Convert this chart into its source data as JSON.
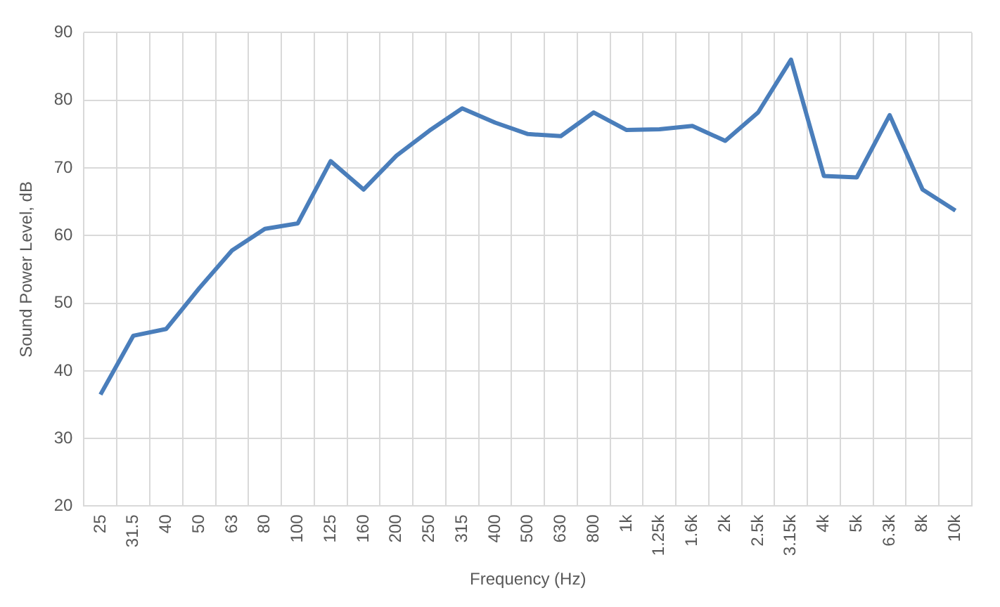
{
  "chart_data": {
    "type": "line",
    "xlabel": "Frequency (Hz)",
    "ylabel": "Sound Power Level, dB",
    "categories": [
      "25",
      "31.5",
      "40",
      "50",
      "63",
      "80",
      "100",
      "125",
      "160",
      "200",
      "250",
      "315",
      "400",
      "500",
      "630",
      "800",
      "1k",
      "1.25k",
      "1.6k",
      "2k",
      "2.5k",
      "3.15k",
      "4k",
      "5k",
      "6.3k",
      "8k",
      "10k"
    ],
    "series": [
      {
        "color": "#4a7ebb",
        "values": [
          36.5,
          45.2,
          46.2,
          52.2,
          57.8,
          61,
          61.8,
          71,
          66.8,
          71.8,
          75.5,
          78.8,
          76.7,
          75,
          74.7,
          78.2,
          75.6,
          75.7,
          76.2,
          74,
          78.2,
          86,
          68.8,
          68.6,
          77.8,
          66.8,
          63.7
        ]
      }
    ],
    "ylim": [
      20,
      90
    ],
    "yticks": [
      20,
      30,
      40,
      50,
      60,
      70,
      80,
      90
    ],
    "grid": true,
    "legend": false,
    "marker": "none",
    "line_style": "solid"
  }
}
